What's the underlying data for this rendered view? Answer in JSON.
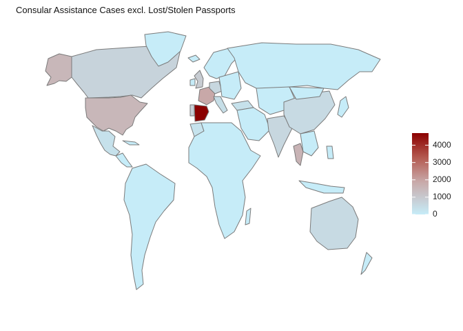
{
  "title": "Consular Assistance Cases excl. Lost/Stolen Passports",
  "colors": {
    "low": "#c6ecf8",
    "high": "#8b0000",
    "border": "#7a7a7a",
    "background": "#ffffff"
  },
  "legend": {
    "min": 0,
    "max": 4700,
    "ticks": [
      "0",
      "1000",
      "2000",
      "3000",
      "4000"
    ],
    "tick_values": [
      0,
      1000,
      2000,
      3000,
      4000
    ],
    "position": "right"
  },
  "map_data": {
    "type": "choropleth",
    "highlighted_regions": [
      {
        "region": "Spain",
        "level": 4700
      },
      {
        "region": "United States",
        "level": 1500
      },
      {
        "region": "Alaska",
        "level": 1500
      },
      {
        "region": "France",
        "level": 1900
      },
      {
        "region": "Thailand",
        "level": 1600
      },
      {
        "region": "Canada",
        "level": 700
      },
      {
        "region": "United Kingdom",
        "level": 900
      },
      {
        "region": "Germany",
        "level": 600
      },
      {
        "region": "India",
        "level": 600
      },
      {
        "region": "China",
        "level": 500
      },
      {
        "region": "Australia",
        "level": 500
      },
      {
        "region": "Italy",
        "level": 400
      },
      {
        "region": "Mexico",
        "level": 300
      },
      {
        "region": "Portugal",
        "level": 800
      },
      {
        "region": "Turkey",
        "level": 300
      },
      {
        "region": "Morocco",
        "level": 250
      }
    ]
  }
}
